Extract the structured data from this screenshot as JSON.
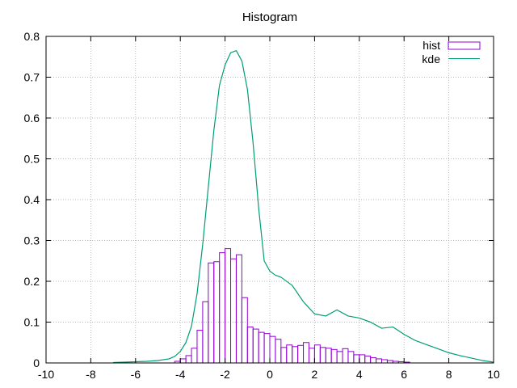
{
  "chart_data": {
    "type": "bar",
    "title": "Histogram",
    "xlabel": "",
    "ylabel": "",
    "xlim": [
      -10,
      10
    ],
    "ylim": [
      0,
      0.8
    ],
    "x_ticks": [
      "-10",
      "-8",
      "-6",
      "-4",
      "-2",
      "0",
      "2",
      "4",
      "6",
      "8",
      "10"
    ],
    "y_ticks": [
      "0",
      "0.1",
      "0.2",
      "0.3",
      "0.4",
      "0.5",
      "0.6",
      "0.7",
      "0.8"
    ],
    "grid": true,
    "legend_position": "top-right",
    "series": [
      {
        "name": "hist",
        "kind": "histogram",
        "color": "#9400d3",
        "bin_width": 0.25,
        "bins": [
          [
            -4.25,
            0.004
          ],
          [
            -4.0,
            0.01
          ],
          [
            -3.75,
            0.018
          ],
          [
            -3.5,
            0.036
          ],
          [
            -3.25,
            0.08
          ],
          [
            -3.0,
            0.15
          ],
          [
            -2.75,
            0.245
          ],
          [
            -2.5,
            0.248
          ],
          [
            -2.25,
            0.27
          ],
          [
            -2.0,
            0.28
          ],
          [
            -1.75,
            0.255
          ],
          [
            -1.5,
            0.265
          ],
          [
            -1.25,
            0.16
          ],
          [
            -1.0,
            0.088
          ],
          [
            -0.75,
            0.083
          ],
          [
            -0.5,
            0.075
          ],
          [
            -0.25,
            0.072
          ],
          [
            0.0,
            0.065
          ],
          [
            0.25,
            0.058
          ],
          [
            0.5,
            0.038
          ],
          [
            0.75,
            0.044
          ],
          [
            1.0,
            0.04
          ],
          [
            1.25,
            0.043
          ],
          [
            1.5,
            0.05
          ],
          [
            1.75,
            0.036
          ],
          [
            2.0,
            0.044
          ],
          [
            2.25,
            0.038
          ],
          [
            2.5,
            0.036
          ],
          [
            2.75,
            0.033
          ],
          [
            3.0,
            0.028
          ],
          [
            3.25,
            0.035
          ],
          [
            3.5,
            0.028
          ],
          [
            3.75,
            0.02
          ],
          [
            4.0,
            0.02
          ],
          [
            4.25,
            0.017
          ],
          [
            4.5,
            0.013
          ],
          [
            4.75,
            0.01
          ],
          [
            5.0,
            0.008
          ],
          [
            5.25,
            0.006
          ],
          [
            5.5,
            0.004
          ],
          [
            5.75,
            0.003
          ],
          [
            6.0,
            0.002
          ]
        ]
      },
      {
        "name": "kde",
        "kind": "line",
        "color": "#009e73",
        "x": [
          -7.0,
          -6.5,
          -6.0,
          -5.5,
          -5.0,
          -4.5,
          -4.25,
          -4.0,
          -3.75,
          -3.5,
          -3.25,
          -3.0,
          -2.75,
          -2.5,
          -2.25,
          -2.0,
          -1.75,
          -1.5,
          -1.25,
          -1.0,
          -0.75,
          -0.5,
          -0.25,
          0.0,
          0.25,
          0.5,
          1.0,
          1.5,
          2.0,
          2.5,
          3.0,
          3.5,
          4.0,
          4.5,
          5.0,
          5.5,
          6.0,
          6.5,
          7.0,
          7.5,
          8.0,
          8.5,
          9.0,
          9.5,
          10.0
        ],
        "y": [
          0.001,
          0.002,
          0.003,
          0.004,
          0.006,
          0.01,
          0.016,
          0.028,
          0.05,
          0.09,
          0.17,
          0.29,
          0.43,
          0.57,
          0.68,
          0.73,
          0.76,
          0.765,
          0.74,
          0.67,
          0.54,
          0.38,
          0.25,
          0.225,
          0.215,
          0.21,
          0.19,
          0.15,
          0.12,
          0.115,
          0.13,
          0.115,
          0.11,
          0.1,
          0.085,
          0.088,
          0.07,
          0.055,
          0.045,
          0.035,
          0.025,
          0.018,
          0.012,
          0.006,
          0.002
        ]
      }
    ]
  }
}
